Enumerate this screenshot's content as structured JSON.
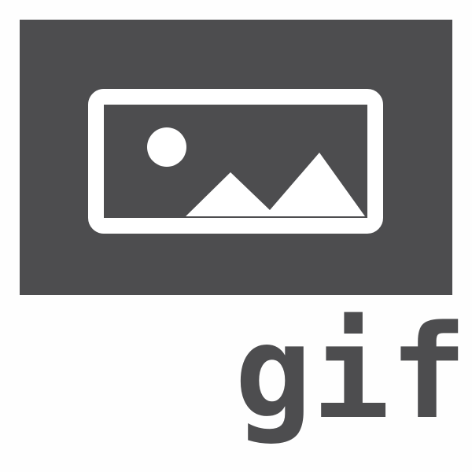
{
  "icon": {
    "name": "image-file-icon",
    "extension": "gif",
    "colors": {
      "background": "#fefefe",
      "banner": "#4d4d4f",
      "glyph": "#ffffff",
      "text": "#4d4d4f"
    }
  }
}
